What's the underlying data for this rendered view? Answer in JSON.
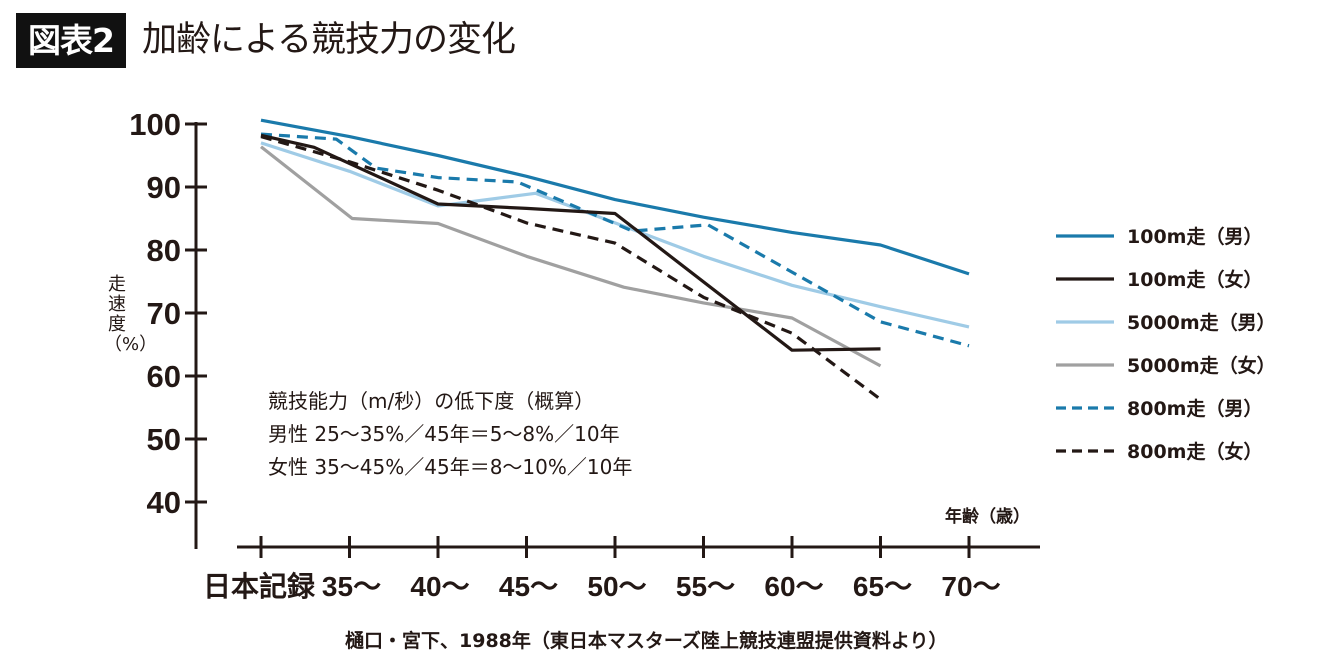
{
  "header": {
    "badge": "図表2",
    "title": "加齢による競技力の変化"
  },
  "chart_data": {
    "type": "line",
    "title": "加齢による競技力の変化",
    "xlabel": "年齢（歳）",
    "ylabel": "走速度（%）",
    "categories": [
      "日本記録",
      "35〜",
      "40〜",
      "45〜",
      "50〜",
      "55〜",
      "60〜",
      "65〜",
      "70〜"
    ],
    "ylim": [
      35,
      100
    ],
    "yticks": [
      100,
      90,
      80,
      70,
      60,
      50,
      40
    ],
    "grid": false,
    "legend_position": "right",
    "series": [
      {
        "name": "100m走（男）",
        "color": "#1a7aab",
        "dashed": false,
        "points": [
          [
            0,
            100.6
          ],
          [
            1,
            98.0
          ],
          [
            2,
            95.0
          ],
          [
            3,
            91.7
          ],
          [
            4,
            88.0
          ],
          [
            5,
            85.2
          ],
          [
            6,
            82.8
          ],
          [
            7,
            80.8
          ],
          [
            8,
            76.2
          ]
        ]
      },
      {
        "name": "100m走（女）",
        "color": "#231815",
        "dashed": false,
        "points": [
          [
            0,
            98.2
          ],
          [
            0.6,
            96.3
          ],
          [
            2,
            87.3
          ],
          [
            3,
            86.6
          ],
          [
            4,
            85.8
          ],
          [
            6,
            64.1
          ],
          [
            7,
            64.3
          ]
        ]
      },
      {
        "name": "5000m走（男）",
        "color": "#9fcbe6",
        "dashed": false,
        "points": [
          [
            0,
            97.0
          ],
          [
            1,
            92.5
          ],
          [
            2,
            87.0
          ],
          [
            3.1,
            89.0
          ],
          [
            4,
            84.3
          ],
          [
            5,
            79.0
          ],
          [
            6,
            74.4
          ],
          [
            7,
            71.0
          ],
          [
            8,
            67.8
          ]
        ]
      },
      {
        "name": "5000m走（女）",
        "color": "#a0a0a0",
        "dashed": false,
        "points": [
          [
            0,
            96.4
          ],
          [
            1.03,
            85.0
          ],
          [
            2,
            84.2
          ],
          [
            3,
            79.0
          ],
          [
            4.1,
            74.1
          ],
          [
            5,
            71.6
          ],
          [
            6,
            69.2
          ],
          [
            7,
            61.6
          ]
        ]
      },
      {
        "name": "800m走（男）",
        "color": "#1a7aab",
        "dashed": true,
        "points": [
          [
            0,
            98.4
          ],
          [
            0.85,
            97.6
          ],
          [
            1.3,
            93.0
          ],
          [
            2,
            91.5
          ],
          [
            2.9,
            90.8
          ],
          [
            4.2,
            83.0
          ],
          [
            5.05,
            84.0
          ],
          [
            6,
            76.5
          ],
          [
            7,
            68.6
          ],
          [
            8,
            64.8
          ]
        ]
      },
      {
        "name": "800m走（女）",
        "color": "#231815",
        "dashed": true,
        "points": [
          [
            0,
            98.0
          ],
          [
            1,
            94.0
          ],
          [
            2,
            89.5
          ],
          [
            3,
            84.3
          ],
          [
            4,
            81.1
          ],
          [
            5,
            72.5
          ],
          [
            6,
            66.8
          ],
          [
            7,
            56.3
          ]
        ]
      }
    ],
    "annotation": {
      "heading": "競技能力（m/秒）の低下度（概算）",
      "male": "男性 25〜35%／45年＝5〜8%／10年",
      "female": "女性 35〜45%／45年＝8〜10%／10年"
    },
    "source": "樋口・宮下、1988年（東日本マスターズ陸上競技連盟提供資料より）"
  }
}
